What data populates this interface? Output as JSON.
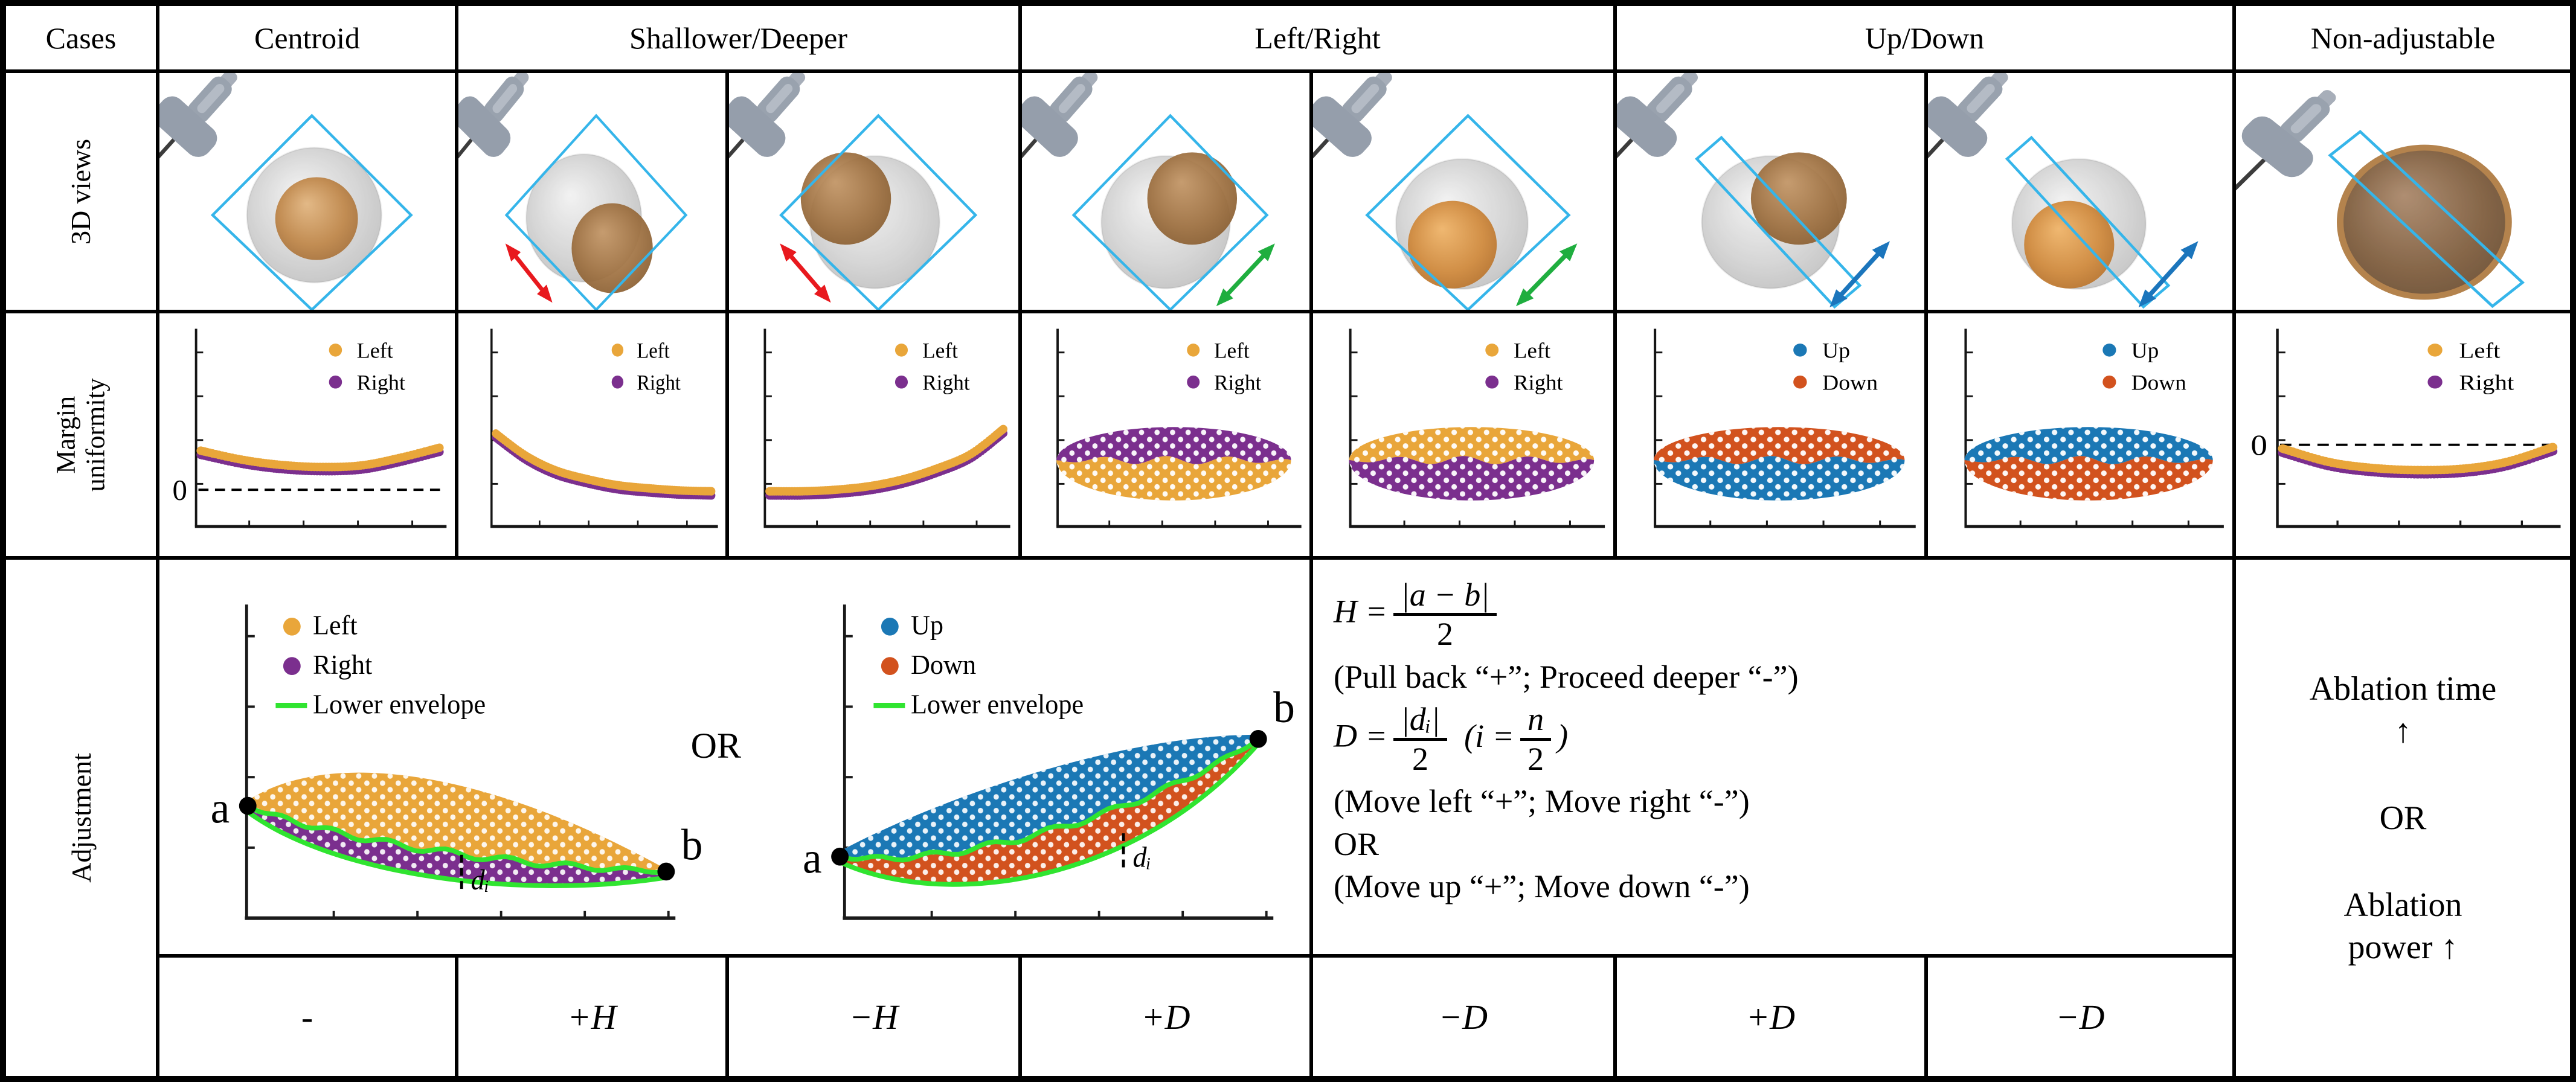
{
  "header": {
    "cases": "Cases",
    "centroid": "Centroid",
    "shallower_deeper": "Shallower/Deeper",
    "left_right": "Left/Right",
    "up_down": "Up/Down",
    "non_adjustable": "Non-adjustable"
  },
  "row_labels": {
    "views": "3D views",
    "margin": "Margin uniformity",
    "adjustment": "Adjustment"
  },
  "bottom_row": {
    "centroid": "-",
    "shallower": "+H",
    "deeper": "−H",
    "left": "+D",
    "right": "−D",
    "up": "+D",
    "down": "−D"
  },
  "formulas": {
    "h_lhs": "H =",
    "h_num": "|a − b|",
    "h_den": "2",
    "h_note": "(Pull back “+”; Proceed deeper “-”)",
    "d_lhs": "D =",
    "d_num": "|dᵢ|",
    "d_den": "2",
    "d_paren_pre": "(i =",
    "d_paren_num": "n",
    "d_paren_den": "2",
    "d_paren_post": ")",
    "d_note": "(Move left “+”; Move right “-”)",
    "or": "OR",
    "ud_note": "(Move up “+”; Move down “-”)"
  },
  "adjustment": {
    "or_label": "OR"
  },
  "ablation": {
    "time": "Ablation time ↑",
    "or": "OR",
    "power": "Ablation power ↑"
  },
  "colors": {
    "left": "#E9A63A",
    "right": "#7B2F8E",
    "up": "#1B78B5",
    "down": "#D2521E",
    "envelope": "#30E430",
    "plane": "#35B5EA",
    "arrow_red": "#E8191E",
    "arrow_green": "#1FAE3F",
    "arrow_blue": "#1B75BC"
  },
  "chart_data": [
    {
      "id": "m-centroid",
      "type": "curve_pair",
      "panel": "Centroid",
      "legend": [
        {
          "label": "Left",
          "color": "#E9A63A"
        },
        {
          "label": "Right",
          "color": "#7B2F8E"
        }
      ],
      "zero_line": true,
      "zero_label": "0",
      "x": [
        0,
        0.17,
        0.33,
        0.5,
        0.67,
        0.83,
        1
      ],
      "y": [
        0.26,
        0.2,
        0.165,
        0.15,
        0.16,
        0.21,
        0.28
      ]
    },
    {
      "id": "m-shallower",
      "type": "curve_pair",
      "panel": "Shallower",
      "legend": [
        {
          "label": "Left",
          "color": "#E9A63A"
        },
        {
          "label": "Right",
          "color": "#7B2F8E"
        }
      ],
      "zero_line": false,
      "x": [
        0,
        0.14,
        0.28,
        0.43,
        0.57,
        0.71,
        0.86,
        1
      ],
      "y": [
        0.52,
        0.37,
        0.27,
        0.21,
        0.17,
        0.15,
        0.135,
        0.13
      ]
    },
    {
      "id": "m-deeper",
      "type": "curve_pair",
      "panel": "Deeper",
      "legend": [
        {
          "label": "Left",
          "color": "#E9A63A"
        },
        {
          "label": "Right",
          "color": "#7B2F8E"
        }
      ],
      "zero_line": false,
      "x": [
        0,
        0.14,
        0.28,
        0.43,
        0.57,
        0.71,
        0.86,
        1
      ],
      "y": [
        0.13,
        0.13,
        0.14,
        0.165,
        0.21,
        0.28,
        0.38,
        0.55
      ]
    },
    {
      "id": "m-left",
      "type": "split_blob",
      "panel": "Left",
      "legend": [
        {
          "label": "Left",
          "color": "#E9A63A"
        },
        {
          "label": "Right",
          "color": "#7B2F8E"
        }
      ],
      "top": {
        "label": "Right",
        "color": "#7B2F8E"
      },
      "bottom": {
        "label": "Left",
        "color": "#E9A63A"
      }
    },
    {
      "id": "m-right",
      "type": "split_blob",
      "panel": "Right",
      "legend": [
        {
          "label": "Left",
          "color": "#E9A63A"
        },
        {
          "label": "Right",
          "color": "#7B2F8E"
        }
      ],
      "top": {
        "label": "Left",
        "color": "#E9A63A"
      },
      "bottom": {
        "label": "Right",
        "color": "#7B2F8E"
      }
    },
    {
      "id": "m-up",
      "type": "split_blob",
      "panel": "Up",
      "legend": [
        {
          "label": "Up",
          "color": "#1B78B5"
        },
        {
          "label": "Down",
          "color": "#D2521E"
        }
      ],
      "top": {
        "label": "Down",
        "color": "#D2521E"
      },
      "bottom": {
        "label": "Up",
        "color": "#1B78B5"
      }
    },
    {
      "id": "m-down",
      "type": "split_blob",
      "panel": "Down",
      "legend": [
        {
          "label": "Up",
          "color": "#1B78B5"
        },
        {
          "label": "Down",
          "color": "#D2521E"
        }
      ],
      "top": {
        "label": "Up",
        "color": "#1B78B5"
      },
      "bottom": {
        "label": "Down",
        "color": "#D2521E"
      }
    },
    {
      "id": "m-nonadj",
      "type": "curve_pair",
      "panel": "Non-adjustable",
      "legend": [
        {
          "label": "Left",
          "color": "#E9A63A"
        },
        {
          "label": "Right",
          "color": "#7B2F8E"
        }
      ],
      "zero_line": true,
      "zero_label": "0",
      "x": [
        0,
        0.17,
        0.33,
        0.5,
        0.67,
        0.83,
        1
      ],
      "y": [
        -0.03,
        -0.12,
        -0.16,
        -0.175,
        -0.165,
        -0.12,
        -0.02
      ]
    },
    {
      "id": "adj-lr",
      "type": "banana",
      "dir": "down",
      "legend": [
        {
          "label": "Left",
          "color": "#E9A63A"
        },
        {
          "label": "Right",
          "color": "#7B2F8E"
        },
        {
          "label": "Lower envelope",
          "color": "#30E430",
          "swatch": "line"
        }
      ],
      "a_label": "a",
      "b_label": "b",
      "di_label": "dᵢ"
    },
    {
      "id": "adj-ud",
      "type": "banana",
      "dir": "up",
      "legend": [
        {
          "label": "Up",
          "color": "#1B78B5"
        },
        {
          "label": "Down",
          "color": "#D2521E"
        },
        {
          "label": "Lower envelope",
          "color": "#30E430",
          "swatch": "line"
        }
      ],
      "a_label": "a",
      "b_label": "b",
      "di_label": "dᵢ"
    }
  ],
  "views": [
    {
      "id": "v-centroid",
      "case": "Centroid",
      "plane": "diamond",
      "tumor": "center",
      "shade": "normal",
      "arrow": null
    },
    {
      "id": "v-shallower",
      "case": "Shallower",
      "plane": "diamond",
      "tumor": "lower-right",
      "shade": "dark",
      "arrow": "red"
    },
    {
      "id": "v-deeper",
      "case": "Deeper",
      "plane": "diamond",
      "tumor": "upper-left",
      "shade": "dark",
      "arrow": "red"
    },
    {
      "id": "v-left",
      "case": "Left",
      "plane": "diamond",
      "tumor": "upper-right",
      "shade": "dark",
      "arrow": "green"
    },
    {
      "id": "v-right",
      "case": "Right",
      "plane": "diamond",
      "tumor": "lower-center",
      "shade": "bright",
      "arrow": "green"
    },
    {
      "id": "v-up",
      "case": "Up",
      "plane": "narrow",
      "tumor": "upper-right",
      "shade": "dark",
      "arrow": "blue"
    },
    {
      "id": "v-down",
      "case": "Down",
      "plane": "narrow",
      "tumor": "lower-center",
      "shade": "bright",
      "arrow": "blue"
    },
    {
      "id": "v-nonadj",
      "case": "Non-adjustable",
      "plane": "narrow",
      "tumor": "large",
      "shade": "large",
      "arrow": null
    }
  ]
}
